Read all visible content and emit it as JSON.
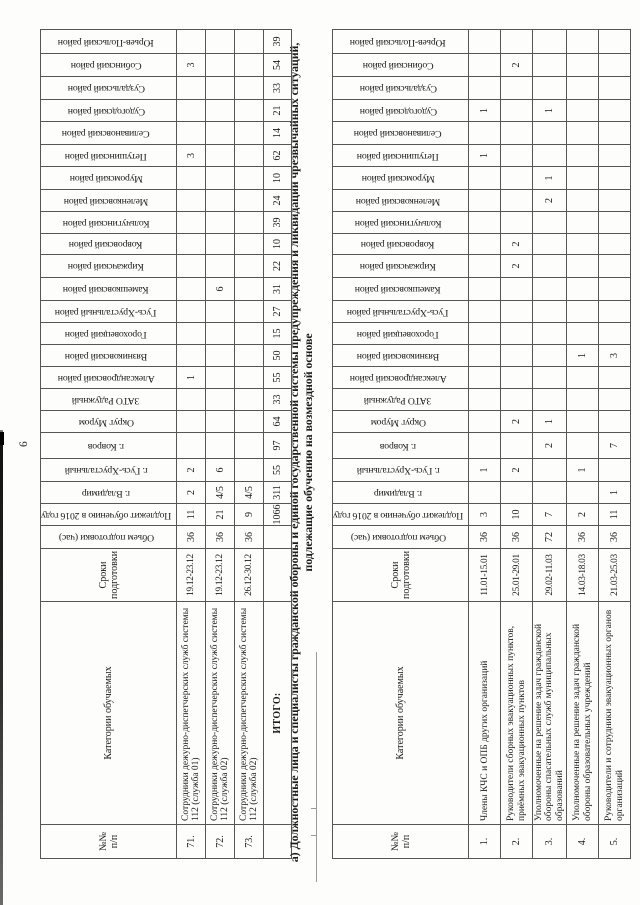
{
  "page_number": "6",
  "section_heading": {
    "line1": "а) Должностные лица и специалисты гражданской обороны и единой государственной системы предупреждения и ликвидации чрезвычайных ситуаций,",
    "line2": "подлежащие обучению на возмездной основе"
  },
  "columns": {
    "num": "№№\nп/п",
    "category": "Категории обучаемых",
    "period": "Сроки подготовки",
    "hours": "Объем подготовки (час)",
    "plan": "Подлежит обучению в 2016 году",
    "districts": [
      "г. Владимир",
      "г. Гусь-Хрустальный",
      "г. Ковров",
      "Округ Муром",
      "ЗАТО Радужный",
      "Александровский район",
      "Вязниковский район",
      "Гороховецкий район",
      "Гусь-Хрустальный район",
      "Камешковский район",
      "Киржачский район",
      "Ковровский район",
      "Кольчугинский район",
      "Меленковский район",
      "Муромский район",
      "Петушинский район",
      "Селивановский район",
      "Судогодский район",
      "Суздальский район",
      "Собинский район",
      "Юрьев-Польский район"
    ]
  },
  "table1": {
    "rows": [
      {
        "num": "71.",
        "category": "Сотрудники дежурно-диспетчерских служб системы 112 (служба 01)",
        "period": "19.12-23.12",
        "hours": "36",
        "plan": "11",
        "values": [
          "2",
          "2",
          "",
          "",
          "",
          "1",
          "",
          "",
          "",
          "",
          "",
          "",
          "",
          "",
          "",
          "3",
          "",
          "",
          "",
          "3",
          ""
        ]
      },
      {
        "num": "72.",
        "category": "Сотрудники дежурно-диспетчерских служб системы 112 (служба 02)",
        "period": "19.12-23.12",
        "hours": "36",
        "plan": "21",
        "values": [
          "4/5",
          "6",
          "",
          "",
          "",
          "",
          "",
          "",
          "",
          "6",
          "",
          "",
          "",
          "",
          "",
          "",
          "",
          "",
          "",
          "",
          ""
        ]
      },
      {
        "num": "73.",
        "category": "Сотрудники дежурно-диспетчерских служб системы 112 (служба 02)",
        "period": "26.12-30.12",
        "hours": "36",
        "plan": "9",
        "values": [
          "4/5",
          "",
          "",
          "",
          "",
          "",
          "",
          "",
          "",
          "",
          "",
          "",
          "",
          "",
          "",
          "",
          "",
          "",
          "",
          "",
          ""
        ]
      }
    ],
    "total": {
      "label": "ИТОГО:",
      "period": "",
      "hours": "",
      "plan": "1066",
      "values": [
        "311",
        "55",
        "97",
        "64",
        "33",
        "55",
        "50",
        "15",
        "27",
        "31",
        "22",
        "10",
        "39",
        "24",
        "10",
        "62",
        "14",
        "21",
        "33",
        "54",
        "39"
      ]
    }
  },
  "table2": {
    "rows": [
      {
        "num": "1.",
        "category": "Члены КЧС и ОПБ других организаций",
        "period": "11.01-15.01",
        "hours": "36",
        "plan": "3",
        "values": [
          "",
          "1",
          "",
          "",
          "",
          "",
          "",
          "",
          "",
          "",
          "",
          "",
          "",
          "",
          "",
          "1",
          "",
          "1",
          "",
          "",
          ""
        ]
      },
      {
        "num": "2.",
        "category": "Руководители сборных эвакуационных пунктов, приёмных эвакуационных пунктов",
        "period": "25.01-29.01",
        "hours": "36",
        "plan": "10",
        "values": [
          "",
          "2",
          "",
          "2",
          "",
          "",
          "",
          "",
          "",
          "",
          "2",
          "2",
          "",
          "",
          "",
          "",
          "",
          "",
          "",
          "2",
          ""
        ]
      },
      {
        "num": "3.",
        "category": "Уполномоченные на решение задач гражданской обороны спасательных служб муниципальных образований",
        "period": "29.02-11.03",
        "hours": "72",
        "plan": "7",
        "values": [
          "",
          "",
          "2",
          "1",
          "",
          "",
          "",
          "",
          "",
          "",
          "",
          "",
          "",
          "2",
          "1",
          "",
          "",
          "1",
          "",
          "",
          ""
        ]
      },
      {
        "num": "4.",
        "category": "Уполномоченные на решение задач гражданской обороны образовательных учреждений",
        "period": "14.03-18.03",
        "hours": "36",
        "plan": "2",
        "values": [
          "",
          "1",
          "",
          "",
          "",
          "",
          "1",
          "",
          "",
          "",
          "",
          "",
          "",
          "",
          "",
          "",
          "",
          "",
          "",
          "",
          ""
        ]
      },
      {
        "num": "5.",
        "category": "Руководители и сотрудники эвакуационных органов организаций",
        "period": "21.03-25.03",
        "hours": "36",
        "plan": "11",
        "values": [
          "1",
          "",
          "7",
          "",
          "",
          "",
          "3",
          "",
          "",
          "",
          "",
          "",
          "",
          "",
          "",
          "",
          "",
          "",
          "",
          "",
          ""
        ]
      }
    ]
  }
}
